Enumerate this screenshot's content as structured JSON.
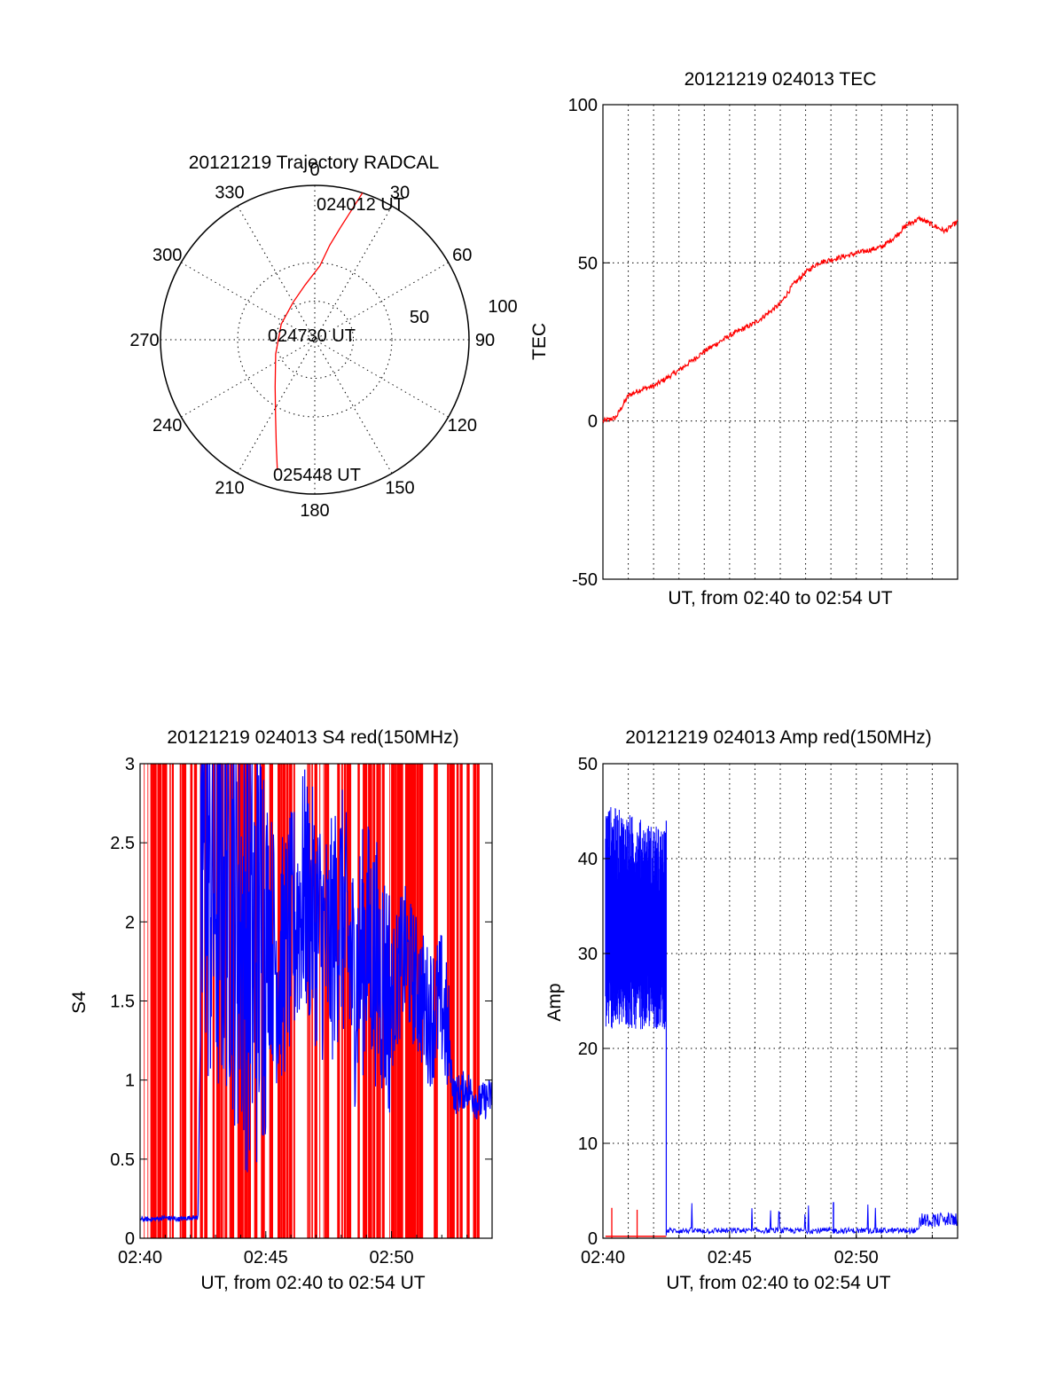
{
  "colors": {
    "red": "#ff0000",
    "blue": "#0000ff",
    "black": "#000000"
  },
  "chart_data": [
    {
      "id": "trajectory",
      "type": "polar",
      "title": "20121219 Trajectory RADCAL",
      "angle_labels": [
        "0",
        "30",
        "60",
        "90",
        "120",
        "150",
        "180",
        "210",
        "240",
        "270",
        "300",
        "330"
      ],
      "radial_labels": [
        "50",
        "100"
      ],
      "annotations": [
        "024012 UT",
        "024730 UT",
        "025448 UT"
      ],
      "series": [
        {
          "color": "red",
          "points": [
            [
              18,
              100
            ],
            [
              16,
              88
            ],
            [
              13,
              75
            ],
            [
              9,
              62
            ],
            [
              4,
              48
            ],
            [
              350,
              36
            ],
            [
              330,
              28
            ],
            [
              295,
              24
            ],
            [
              250,
              27
            ],
            [
              220,
              40
            ],
            [
              207,
              56
            ],
            [
              200,
              73
            ],
            [
              196,
              88
            ]
          ]
        }
      ]
    },
    {
      "id": "tec",
      "type": "line",
      "title": "20121219 024013 TEC",
      "xlabel": "UT, from 02:40 to 02:54 UT",
      "ylabel": "TEC",
      "xlim": [
        0,
        14
      ],
      "ylim": [
        -50,
        100
      ],
      "yticks": [
        "-50",
        "0",
        "50",
        "100"
      ],
      "grid": true,
      "series": [
        {
          "color": "red",
          "x": [
            0,
            0.5,
            1,
            1.5,
            2,
            3,
            4,
            5,
            6,
            7,
            7.5,
            8,
            8.5,
            9,
            10,
            11,
            11.5,
            12,
            12.5,
            13,
            13.5,
            14
          ],
          "y": [
            0,
            1,
            8,
            10,
            11,
            16,
            22,
            27,
            31,
            37,
            43,
            47,
            50,
            51,
            53,
            55,
            58,
            62,
            64,
            62,
            60,
            63
          ]
        }
      ]
    },
    {
      "id": "s4",
      "type": "line",
      "title": "20121219 024013 S4 red(150MHz)",
      "xlabel": "UT, from 02:40 to 02:54 UT",
      "ylabel": "S4",
      "xlim": [
        0,
        14
      ],
      "ylim": [
        0,
        3
      ],
      "xticks": [
        "02:40",
        "02:45",
        "02:50"
      ],
      "yticks": [
        "0",
        "0.5",
        "1",
        "1.5",
        "2",
        "2.5",
        "3"
      ],
      "series": [
        {
          "color": "red",
          "note": "dense vertical spikes spanning 0 to 3 across entire range"
        },
        {
          "color": "blue",
          "x": [
            0,
            0.5,
            1,
            1.5,
            2,
            2.3,
            2.5,
            3,
            3.5,
            4,
            4.5,
            5,
            5.5,
            6,
            6.5,
            7,
            7.5,
            8,
            8.5,
            9,
            9.5,
            10,
            10.5,
            11,
            11.5,
            12,
            12.2,
            12.5,
            13,
            13.5,
            14
          ],
          "y": [
            0.12,
            0.12,
            0.13,
            0.12,
            0.13,
            0.13,
            2.5,
            2.2,
            2.4,
            2.0,
            1.8,
            2.1,
            1.7,
            1.9,
            2.2,
            2.0,
            1.8,
            2.1,
            1.6,
            1.9,
            1.7,
            1.5,
            1.8,
            1.6,
            1.4,
            1.5,
            1.3,
            0.9,
            0.95,
            0.85,
            0.9
          ]
        }
      ]
    },
    {
      "id": "amp",
      "type": "line",
      "title": "20121219 024013 Amp red(150MHz)",
      "xlabel": "UT, from 02:40 to 02:54 UT",
      "ylabel": "Amp",
      "xlim": [
        0,
        14
      ],
      "ylim": [
        0,
        50
      ],
      "xticks": [
        "02:40",
        "02:45",
        "02:50"
      ],
      "yticks": [
        "0",
        "10",
        "20",
        "30",
        "40",
        "50"
      ],
      "grid": true,
      "series": [
        {
          "color": "blue",
          "note": "noisy band 25-45 from 02:40 to 02:42.5, then near 0.5 with small spikes, rising to ~2 after 02:53"
        },
        {
          "color": "red",
          "note": "near 0 from 02:40 to 02:42.5 with spikes to ~3"
        }
      ]
    }
  ]
}
